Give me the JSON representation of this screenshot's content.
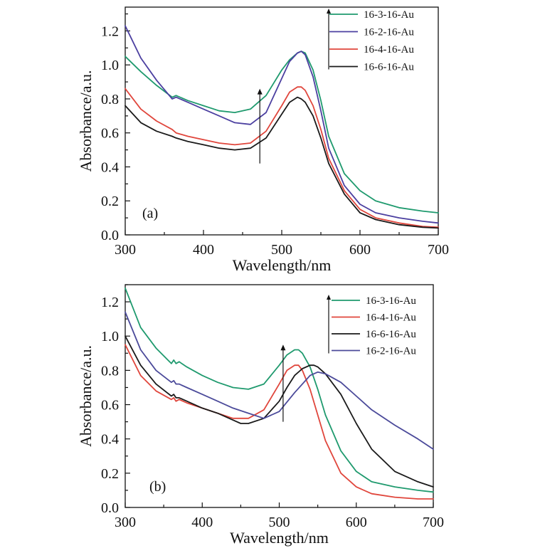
{
  "chart_data": [
    {
      "type": "line",
      "panel_label": "(a)",
      "xlabel": "Wavelength/nm",
      "ylabel": "Absorbance/a.u.",
      "xlim": [
        300,
        700
      ],
      "ylim": [
        0.0,
        1.34
      ],
      "xticks": [
        300,
        400,
        500,
        600,
        700
      ],
      "yticks": [
        0.0,
        0.2,
        0.4,
        0.6,
        0.8,
        1.0,
        1.2
      ],
      "grid": false,
      "legend_position": "top-right",
      "legend_trend_arrow": true,
      "trend_arrow_x": 472,
      "series": [
        {
          "name": "16-3-16-Au",
          "color": "#1f9a6e",
          "x": [
            300,
            320,
            340,
            360,
            365,
            380,
            400,
            420,
            440,
            460,
            480,
            500,
            510,
            520,
            525,
            530,
            540,
            550,
            560,
            580,
            600,
            620,
            650,
            680,
            700
          ],
          "y": [
            1.05,
            0.96,
            0.88,
            0.81,
            0.82,
            0.79,
            0.76,
            0.73,
            0.72,
            0.74,
            0.82,
            0.97,
            1.03,
            1.07,
            1.08,
            1.07,
            0.97,
            0.79,
            0.58,
            0.36,
            0.26,
            0.2,
            0.16,
            0.14,
            0.13
          ]
        },
        {
          "name": "16-2-16-Au",
          "color": "#4b3fa0",
          "x": [
            300,
            320,
            340,
            360,
            365,
            380,
            400,
            420,
            440,
            460,
            480,
            500,
            510,
            520,
            525,
            530,
            540,
            550,
            560,
            580,
            600,
            620,
            650,
            680,
            700
          ],
          "y": [
            1.23,
            1.04,
            0.91,
            0.8,
            0.81,
            0.78,
            0.74,
            0.7,
            0.66,
            0.65,
            0.72,
            0.92,
            1.02,
            1.07,
            1.08,
            1.06,
            0.93,
            0.73,
            0.51,
            0.29,
            0.18,
            0.13,
            0.1,
            0.08,
            0.07
          ]
        },
        {
          "name": "16-4-16-Au",
          "color": "#e0463c",
          "x": [
            300,
            320,
            340,
            360,
            365,
            380,
            400,
            420,
            440,
            460,
            480,
            500,
            510,
            520,
            525,
            530,
            540,
            550,
            560,
            580,
            600,
            620,
            650,
            680,
            700
          ],
          "y": [
            0.86,
            0.74,
            0.67,
            0.62,
            0.6,
            0.58,
            0.56,
            0.54,
            0.53,
            0.54,
            0.61,
            0.76,
            0.84,
            0.87,
            0.87,
            0.85,
            0.76,
            0.62,
            0.45,
            0.26,
            0.15,
            0.1,
            0.07,
            0.05,
            0.045
          ]
        },
        {
          "name": "16-6-16-Au",
          "color": "#1a1a1a",
          "x": [
            300,
            320,
            340,
            360,
            365,
            380,
            400,
            420,
            440,
            460,
            480,
            500,
            510,
            520,
            525,
            530,
            540,
            550,
            560,
            580,
            600,
            620,
            650,
            680,
            700
          ],
          "y": [
            0.76,
            0.66,
            0.61,
            0.58,
            0.57,
            0.55,
            0.53,
            0.51,
            0.5,
            0.51,
            0.57,
            0.71,
            0.78,
            0.81,
            0.8,
            0.78,
            0.7,
            0.57,
            0.42,
            0.24,
            0.13,
            0.09,
            0.06,
            0.045,
            0.04
          ]
        }
      ]
    },
    {
      "type": "line",
      "panel_label": "(b)",
      "xlabel": "Wavelength/nm",
      "ylabel": "Absorbance/a.u.",
      "xlim": [
        300,
        700
      ],
      "ylim": [
        0.0,
        1.3
      ],
      "xticks": [
        300,
        400,
        500,
        600,
        700
      ],
      "yticks": [
        0.0,
        0.2,
        0.4,
        0.6,
        0.8,
        1.0,
        1.2
      ],
      "grid": false,
      "legend_position": "top-right",
      "legend_trend_arrow": true,
      "trend_arrow_x": 505,
      "series": [
        {
          "name": "16-3-16-Au",
          "color": "#1f9a6e",
          "x": [
            300,
            320,
            340,
            360,
            363,
            366,
            370,
            380,
            400,
            420,
            440,
            460,
            480,
            500,
            510,
            520,
            525,
            530,
            540,
            550,
            560,
            580,
            600,
            620,
            650,
            680,
            700
          ],
          "y": [
            1.28,
            1.05,
            0.93,
            0.84,
            0.86,
            0.84,
            0.85,
            0.82,
            0.77,
            0.73,
            0.7,
            0.69,
            0.72,
            0.83,
            0.89,
            0.92,
            0.92,
            0.9,
            0.82,
            0.69,
            0.54,
            0.33,
            0.21,
            0.15,
            0.12,
            0.1,
            0.09
          ]
        },
        {
          "name": "16-4-16-Au",
          "color": "#e0463c",
          "x": [
            300,
            320,
            340,
            360,
            363,
            366,
            370,
            380,
            400,
            420,
            440,
            460,
            480,
            500,
            510,
            520,
            525,
            530,
            540,
            550,
            560,
            580,
            600,
            620,
            650,
            680,
            700
          ],
          "y": [
            0.95,
            0.77,
            0.68,
            0.63,
            0.64,
            0.62,
            0.63,
            0.61,
            0.58,
            0.55,
            0.52,
            0.52,
            0.57,
            0.72,
            0.8,
            0.83,
            0.83,
            0.8,
            0.69,
            0.54,
            0.39,
            0.2,
            0.12,
            0.08,
            0.06,
            0.05,
            0.05
          ]
        },
        {
          "name": "16-6-16-Au",
          "color": "#1a1a1a",
          "x": [
            300,
            320,
            340,
            360,
            363,
            366,
            370,
            380,
            400,
            420,
            440,
            450,
            460,
            480,
            500,
            510,
            520,
            530,
            540,
            545,
            550,
            560,
            580,
            600,
            620,
            650,
            680,
            700
          ],
          "y": [
            1.0,
            0.83,
            0.72,
            0.65,
            0.66,
            0.64,
            0.64,
            0.62,
            0.58,
            0.55,
            0.51,
            0.49,
            0.49,
            0.52,
            0.62,
            0.7,
            0.77,
            0.81,
            0.83,
            0.83,
            0.82,
            0.78,
            0.66,
            0.49,
            0.34,
            0.21,
            0.15,
            0.12
          ]
        },
        {
          "name": "16-2-16-Au",
          "color": "#4b4a9a",
          "x": [
            300,
            320,
            340,
            360,
            363,
            366,
            370,
            380,
            400,
            420,
            440,
            460,
            480,
            500,
            520,
            540,
            550,
            560,
            580,
            600,
            620,
            650,
            680,
            700
          ],
          "y": [
            1.14,
            0.92,
            0.8,
            0.73,
            0.74,
            0.72,
            0.72,
            0.7,
            0.66,
            0.62,
            0.58,
            0.55,
            0.52,
            0.56,
            0.67,
            0.77,
            0.79,
            0.78,
            0.73,
            0.65,
            0.57,
            0.48,
            0.4,
            0.34
          ]
        }
      ]
    }
  ]
}
